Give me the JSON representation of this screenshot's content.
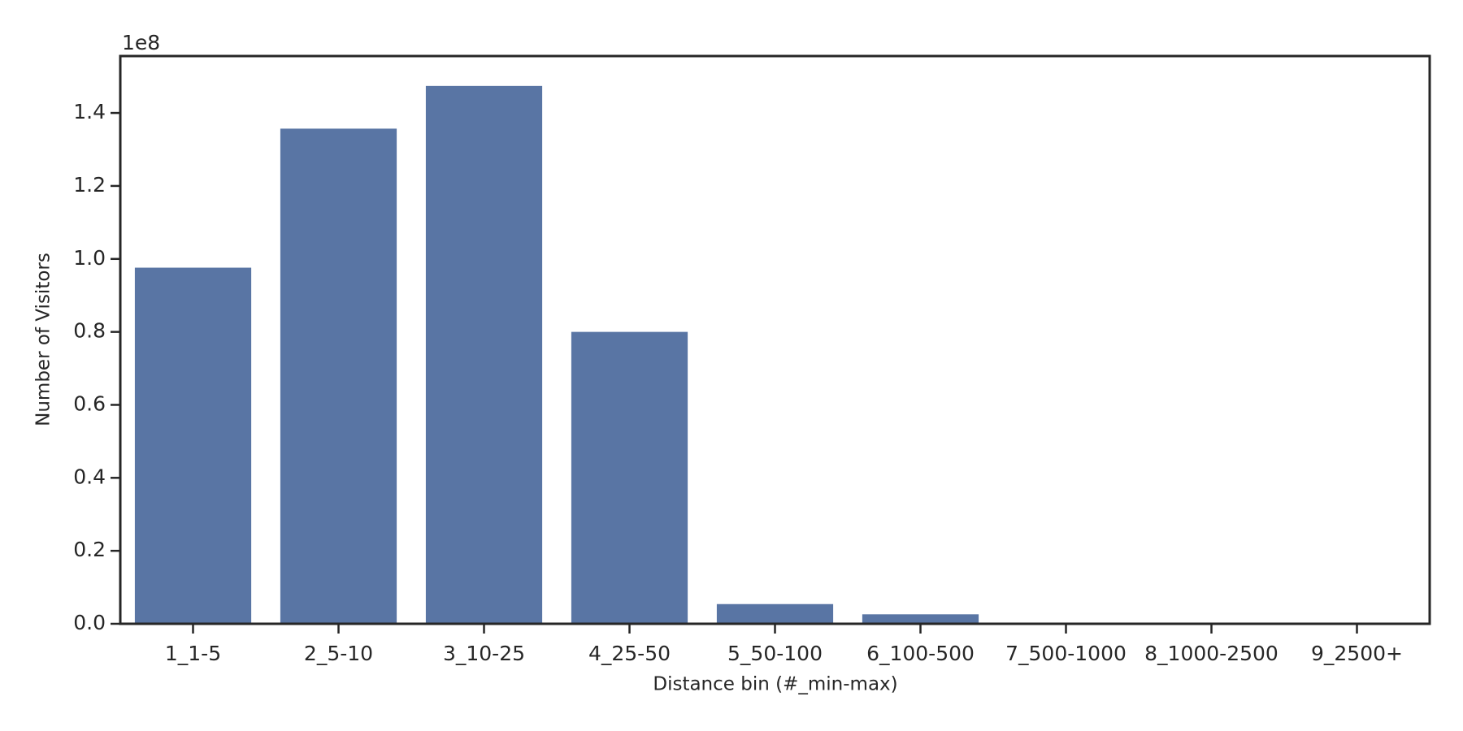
{
  "chart_data": {
    "type": "bar",
    "x_label": "Distance bin (#_min-max)",
    "y_label": "Number of Visitors",
    "y_offset_label": "1e8",
    "categories": [
      "1_1-5",
      "2_5-10",
      "3_10-25",
      "4_25-50",
      "5_50-100",
      "6_100-500",
      "7_500-1000",
      "8_1000-2500",
      "9_2500+"
    ],
    "values": [
      0.976,
      1.357,
      1.474,
      0.8,
      0.054,
      0.026,
      0,
      0,
      0
    ],
    "color": "#5975a4",
    "ylim": [
      0,
      1.556
    ],
    "yticks": [
      {
        "value": 0,
        "label": "0.0"
      },
      {
        "value": 0.2,
        "label": "0.2"
      },
      {
        "value": 0.4,
        "label": "0.4"
      },
      {
        "value": 0.6,
        "label": "0.6"
      },
      {
        "value": 0.8,
        "label": "0.8"
      },
      {
        "value": 1.0,
        "label": "1.0"
      },
      {
        "value": 1.2,
        "label": "1.2"
      },
      {
        "value": 1.4,
        "label": "1.4"
      }
    ]
  }
}
